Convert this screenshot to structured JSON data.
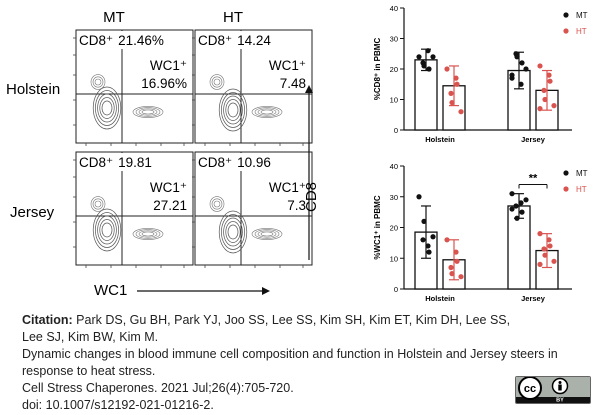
{
  "flow": {
    "col_labels": [
      "MT",
      "HT"
    ],
    "row_labels": [
      "Holstein",
      "Jersey"
    ],
    "x_axis_label": "WC1",
    "y_axis_label": "CD8",
    "panels": [
      {
        "id": "holstein-mt",
        "cd8_prefix": "CD8⁺",
        "cd8_value": "21.46%",
        "wc1_prefix": "WC1⁺",
        "wc1_value": "16.96%"
      },
      {
        "id": "holstein-ht",
        "cd8_prefix": "CD8⁺",
        "cd8_value": "14.24",
        "wc1_prefix": "WC1⁺",
        "wc1_value": "7.48"
      },
      {
        "id": "jersey-mt",
        "cd8_prefix": "CD8⁺",
        "cd8_value": "19.81",
        "wc1_prefix": "WC1⁺",
        "wc1_value": "27.21"
      },
      {
        "id": "jersey-ht",
        "cd8_prefix": "CD8⁺",
        "cd8_value": "10.96",
        "wc1_prefix": "WC1⁺",
        "wc1_value": "7.3"
      }
    ]
  },
  "chart_data": [
    {
      "type": "bar",
      "ylabel": "%CD8⁺ in PBMC",
      "ylim": [
        0,
        40
      ],
      "yticks": [
        0,
        10,
        20,
        30,
        40
      ],
      "categories": [
        "Holstein",
        "Jersey"
      ],
      "legend": [
        "MT",
        "HT"
      ],
      "legend_position": "top-right",
      "significance": "",
      "series": [
        {
          "name": "MT",
          "color": "#111111",
          "means": [
            23,
            19.5
          ],
          "errors": [
            3.5,
            6
          ],
          "points": [
            [
              24,
              26,
              20,
              22,
              21,
              24
            ],
            [
              17,
              15,
              22,
              25,
              24,
              20,
              18
            ]
          ]
        },
        {
          "name": "HT",
          "color": "#d9534f",
          "means": [
            14.5,
            13
          ],
          "errors": [
            6.5,
            6.5
          ],
          "points": [
            [
              20,
              17,
              15,
              12,
              9,
              6
            ],
            [
              21,
              18,
              16,
              13,
              10,
              8,
              7
            ]
          ]
        }
      ]
    },
    {
      "type": "bar",
      "ylabel": "%WC1⁺ in PBMC",
      "ylim": [
        0,
        40
      ],
      "yticks": [
        0,
        10,
        20,
        30,
        40
      ],
      "categories": [
        "Holstein",
        "Jersey"
      ],
      "legend": [
        "MT",
        "HT"
      ],
      "legend_position": "top-right",
      "significance": "**",
      "series": [
        {
          "name": "MT",
          "color": "#111111",
          "means": [
            18.5,
            27
          ],
          "errors": [
            8.5,
            4
          ],
          "points": [
            [
              30,
              14,
              12,
              16,
              22,
              17
            ],
            [
              31,
              28,
              25,
              27,
              23,
              29,
              26
            ]
          ]
        },
        {
          "name": "HT",
          "color": "#d9534f",
          "means": [
            9.5,
            12.5
          ],
          "errors": [
            6.5,
            5.5
          ],
          "points": [
            [
              16,
              12,
              9,
              7,
              5,
              4
            ],
            [
              18,
              16,
              14,
              13,
              11,
              9,
              8
            ]
          ]
        }
      ]
    }
  ],
  "citation": {
    "label": "Citation:",
    "authors_line1": "Park DS, Gu BH, Park YJ, Joo SS, Lee SS, Kim SH, Kim ET, Kim DH, Lee SS,",
    "authors_line2": "Lee SJ, Kim BW, Kim M.",
    "title_line1": "Dynamic changes in blood immune cell composition and function in Holstein and Jersey steers in",
    "title_line2": "response to heat stress.",
    "journal": "Cell Stress Chaperones. 2021 Jul;26(4):705-720.",
    "doi": "doi: 10.1007/s12192-021-01216-2."
  },
  "license": {
    "cc": "cc",
    "by": "BY"
  }
}
